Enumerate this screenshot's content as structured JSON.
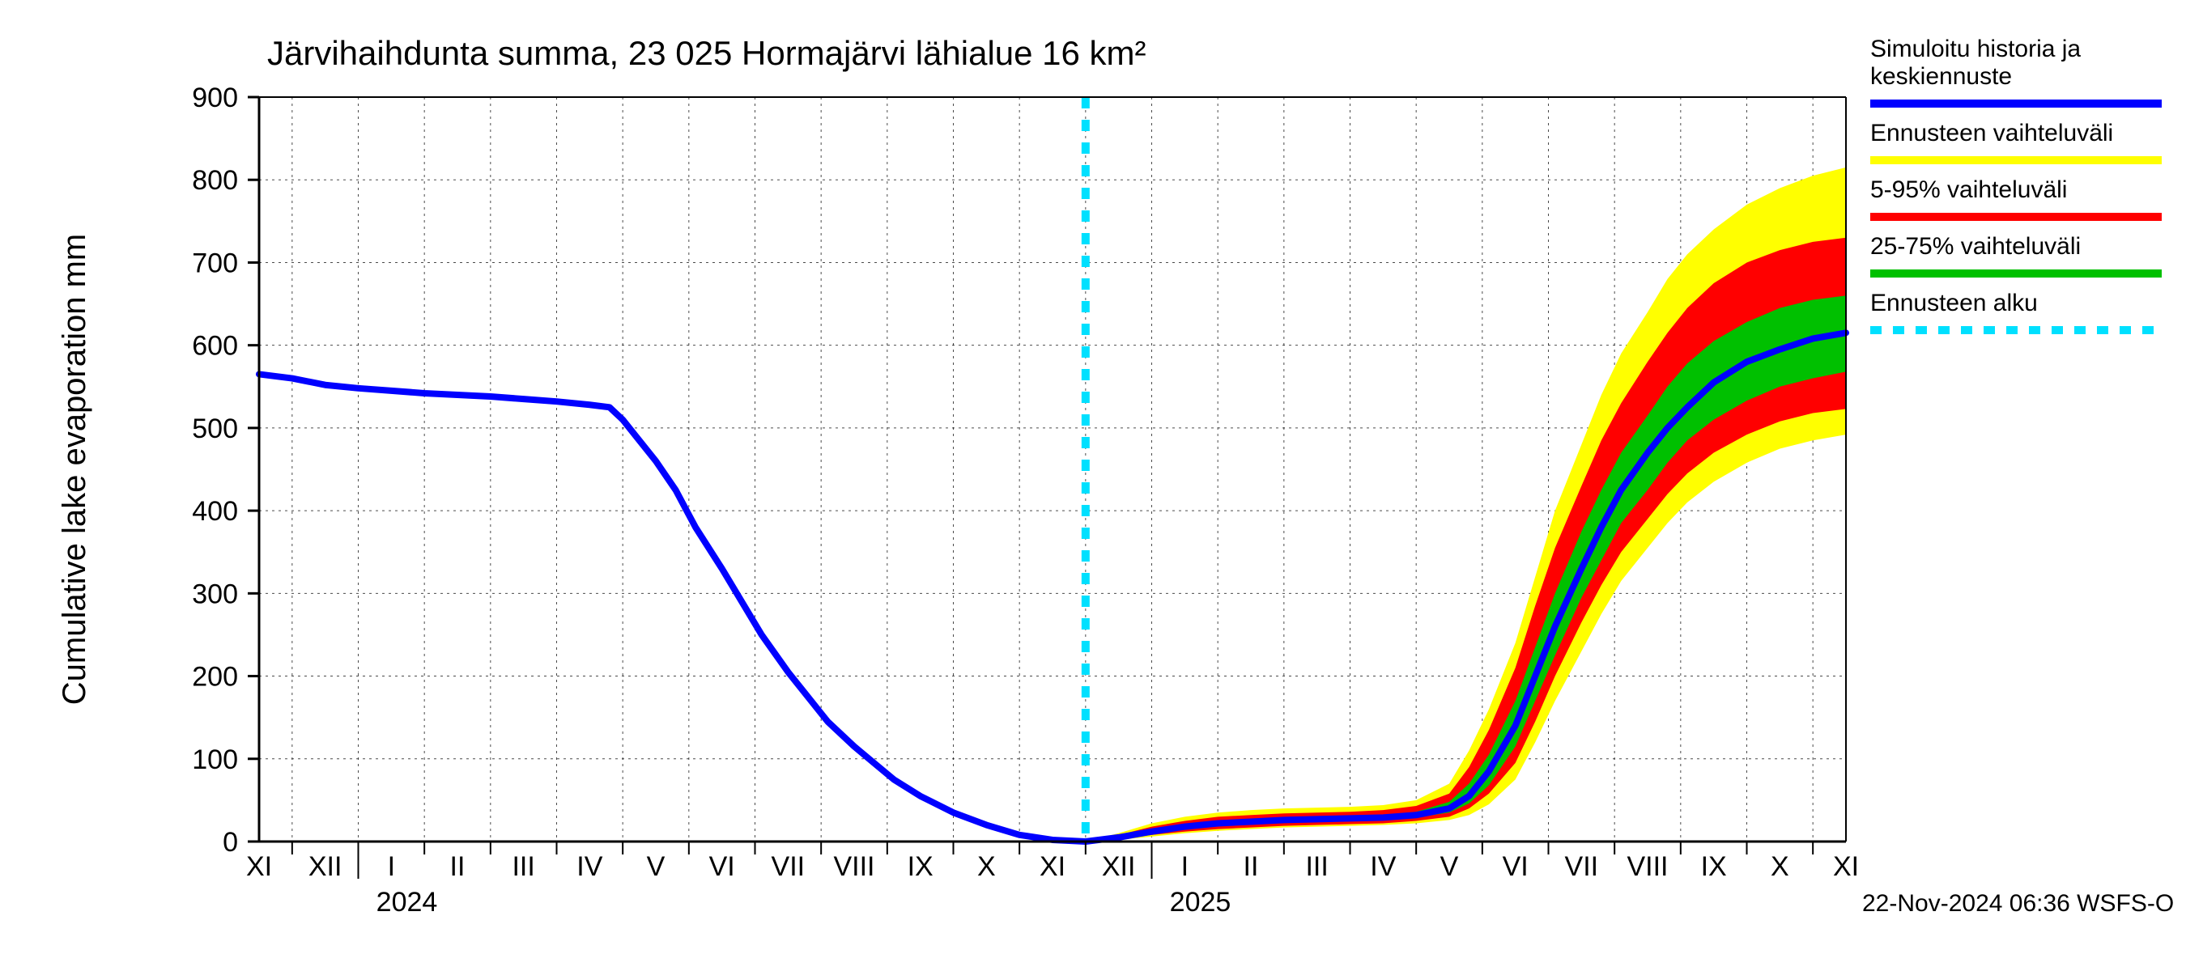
{
  "chart": {
    "type": "line",
    "title": "Järvihaihdunta summa, 23 025 Hormajärvi lähialue 16 km²",
    "ylabel": "Cumulative lake evaporation   mm",
    "footer": "22-Nov-2024 06:36 WSFS-O",
    "background_color": "#ffffff",
    "grid_color": "#000000",
    "grid_dash": "3,5",
    "axis_color": "#000000",
    "title_fontsize": 42,
    "label_fontsize": 40,
    "tick_fontsize": 34,
    "ylim": [
      0,
      900
    ],
    "ytick_step": 100,
    "yticks": [
      0,
      100,
      200,
      300,
      400,
      500,
      600,
      700,
      800,
      900
    ],
    "x_month_labels": [
      "XI",
      "XII",
      "I",
      "II",
      "III",
      "IV",
      "V",
      "VI",
      "VII",
      "VIII",
      "IX",
      "X",
      "XI",
      "XII",
      "I",
      "II",
      "III",
      "IV",
      "V",
      "VI",
      "VII",
      "VIII",
      "IX",
      "X",
      "XI"
    ],
    "x_year_labels": [
      {
        "label": "2024",
        "at_month_index": 2
      },
      {
        "label": "2025",
        "at_month_index": 14
      }
    ],
    "forecast_start_index": 12.5,
    "colors": {
      "history_line": "#0000ff",
      "full_range": "#ffff00",
      "range_5_95": "#ff0000",
      "range_25_75": "#00c000",
      "forecast_marker": "#00e0ff"
    },
    "line_width_main": 8,
    "line_width_legend": 10,
    "forecast_dash": "14,14",
    "series": {
      "main": [
        {
          "i": 0.0,
          "v": 565
        },
        {
          "i": 0.5,
          "v": 560
        },
        {
          "i": 1.0,
          "v": 552
        },
        {
          "i": 1.5,
          "v": 548
        },
        {
          "i": 2.0,
          "v": 545
        },
        {
          "i": 2.5,
          "v": 542
        },
        {
          "i": 3.0,
          "v": 540
        },
        {
          "i": 3.5,
          "v": 538
        },
        {
          "i": 4.0,
          "v": 535
        },
        {
          "i": 4.5,
          "v": 532
        },
        {
          "i": 5.0,
          "v": 528
        },
        {
          "i": 5.3,
          "v": 525
        },
        {
          "i": 5.5,
          "v": 510
        },
        {
          "i": 5.7,
          "v": 490
        },
        {
          "i": 6.0,
          "v": 460
        },
        {
          "i": 6.3,
          "v": 425
        },
        {
          "i": 6.6,
          "v": 380
        },
        {
          "i": 7.0,
          "v": 330
        },
        {
          "i": 7.3,
          "v": 290
        },
        {
          "i": 7.6,
          "v": 250
        },
        {
          "i": 8.0,
          "v": 205
        },
        {
          "i": 8.3,
          "v": 175
        },
        {
          "i": 8.6,
          "v": 145
        },
        {
          "i": 9.0,
          "v": 115
        },
        {
          "i": 9.3,
          "v": 95
        },
        {
          "i": 9.6,
          "v": 75
        },
        {
          "i": 10.0,
          "v": 55
        },
        {
          "i": 10.5,
          "v": 35
        },
        {
          "i": 11.0,
          "v": 20
        },
        {
          "i": 11.5,
          "v": 8
        },
        {
          "i": 12.0,
          "v": 2
        },
        {
          "i": 12.5,
          "v": 0
        },
        {
          "i": 13.0,
          "v": 5
        },
        {
          "i": 13.5,
          "v": 12
        },
        {
          "i": 14.0,
          "v": 18
        },
        {
          "i": 14.5,
          "v": 22
        },
        {
          "i": 15.0,
          "v": 24
        },
        {
          "i": 15.5,
          "v": 26
        },
        {
          "i": 16.0,
          "v": 27
        },
        {
          "i": 16.5,
          "v": 28
        },
        {
          "i": 17.0,
          "v": 29
        },
        {
          "i": 17.5,
          "v": 32
        },
        {
          "i": 18.0,
          "v": 40
        },
        {
          "i": 18.3,
          "v": 55
        },
        {
          "i": 18.6,
          "v": 85
        },
        {
          "i": 19.0,
          "v": 140
        },
        {
          "i": 19.3,
          "v": 200
        },
        {
          "i": 19.6,
          "v": 260
        },
        {
          "i": 20.0,
          "v": 330
        },
        {
          "i": 20.3,
          "v": 380
        },
        {
          "i": 20.6,
          "v": 425
        },
        {
          "i": 21.0,
          "v": 470
        },
        {
          "i": 21.3,
          "v": 500
        },
        {
          "i": 21.6,
          "v": 525
        },
        {
          "i": 22.0,
          "v": 555
        },
        {
          "i": 22.5,
          "v": 580
        },
        {
          "i": 23.0,
          "v": 595
        },
        {
          "i": 23.5,
          "v": 608
        },
        {
          "i": 24.0,
          "v": 615
        }
      ],
      "band_full_hi": [
        {
          "i": 12.5,
          "v": 0
        },
        {
          "i": 13.0,
          "v": 10
        },
        {
          "i": 13.5,
          "v": 22
        },
        {
          "i": 14.0,
          "v": 30
        },
        {
          "i": 14.5,
          "v": 35
        },
        {
          "i": 15.0,
          "v": 38
        },
        {
          "i": 15.5,
          "v": 40
        },
        {
          "i": 16.0,
          "v": 41
        },
        {
          "i": 16.5,
          "v": 42
        },
        {
          "i": 17.0,
          "v": 44
        },
        {
          "i": 17.5,
          "v": 50
        },
        {
          "i": 18.0,
          "v": 70
        },
        {
          "i": 18.3,
          "v": 110
        },
        {
          "i": 18.6,
          "v": 160
        },
        {
          "i": 19.0,
          "v": 240
        },
        {
          "i": 19.3,
          "v": 320
        },
        {
          "i": 19.6,
          "v": 400
        },
        {
          "i": 20.0,
          "v": 480
        },
        {
          "i": 20.3,
          "v": 540
        },
        {
          "i": 20.6,
          "v": 590
        },
        {
          "i": 21.0,
          "v": 640
        },
        {
          "i": 21.3,
          "v": 680
        },
        {
          "i": 21.6,
          "v": 710
        },
        {
          "i": 22.0,
          "v": 740
        },
        {
          "i": 22.5,
          "v": 770
        },
        {
          "i": 23.0,
          "v": 790
        },
        {
          "i": 23.5,
          "v": 805
        },
        {
          "i": 24.0,
          "v": 815
        }
      ],
      "band_full_lo": [
        {
          "i": 12.5,
          "v": 0
        },
        {
          "i": 13.0,
          "v": 2
        },
        {
          "i": 13.5,
          "v": 6
        },
        {
          "i": 14.0,
          "v": 10
        },
        {
          "i": 14.5,
          "v": 13
        },
        {
          "i": 15.0,
          "v": 15
        },
        {
          "i": 15.5,
          "v": 17
        },
        {
          "i": 16.0,
          "v": 18
        },
        {
          "i": 16.5,
          "v": 19
        },
        {
          "i": 17.0,
          "v": 20
        },
        {
          "i": 17.5,
          "v": 22
        },
        {
          "i": 18.0,
          "v": 26
        },
        {
          "i": 18.3,
          "v": 32
        },
        {
          "i": 18.6,
          "v": 45
        },
        {
          "i": 19.0,
          "v": 75
        },
        {
          "i": 19.3,
          "v": 120
        },
        {
          "i": 19.6,
          "v": 170
        },
        {
          "i": 20.0,
          "v": 230
        },
        {
          "i": 20.3,
          "v": 275
        },
        {
          "i": 20.6,
          "v": 315
        },
        {
          "i": 21.0,
          "v": 355
        },
        {
          "i": 21.3,
          "v": 385
        },
        {
          "i": 21.6,
          "v": 410
        },
        {
          "i": 22.0,
          "v": 435
        },
        {
          "i": 22.5,
          "v": 458
        },
        {
          "i": 23.0,
          "v": 475
        },
        {
          "i": 23.5,
          "v": 485
        },
        {
          "i": 24.0,
          "v": 492
        }
      ],
      "band_5_95_hi": [
        {
          "i": 12.5,
          "v": 0
        },
        {
          "i": 13.0,
          "v": 8
        },
        {
          "i": 13.5,
          "v": 18
        },
        {
          "i": 14.0,
          "v": 25
        },
        {
          "i": 14.5,
          "v": 30
        },
        {
          "i": 15.0,
          "v": 32
        },
        {
          "i": 15.5,
          "v": 34
        },
        {
          "i": 16.0,
          "v": 35
        },
        {
          "i": 16.5,
          "v": 36
        },
        {
          "i": 17.0,
          "v": 38
        },
        {
          "i": 17.5,
          "v": 43
        },
        {
          "i": 18.0,
          "v": 58
        },
        {
          "i": 18.3,
          "v": 90
        },
        {
          "i": 18.6,
          "v": 135
        },
        {
          "i": 19.0,
          "v": 210
        },
        {
          "i": 19.3,
          "v": 285
        },
        {
          "i": 19.6,
          "v": 355
        },
        {
          "i": 20.0,
          "v": 430
        },
        {
          "i": 20.3,
          "v": 485
        },
        {
          "i": 20.6,
          "v": 530
        },
        {
          "i": 21.0,
          "v": 580
        },
        {
          "i": 21.3,
          "v": 615
        },
        {
          "i": 21.6,
          "v": 645
        },
        {
          "i": 22.0,
          "v": 675
        },
        {
          "i": 22.5,
          "v": 700
        },
        {
          "i": 23.0,
          "v": 715
        },
        {
          "i": 23.5,
          "v": 725
        },
        {
          "i": 24.0,
          "v": 730
        }
      ],
      "band_5_95_lo": [
        {
          "i": 12.5,
          "v": 0
        },
        {
          "i": 13.0,
          "v": 3
        },
        {
          "i": 13.5,
          "v": 8
        },
        {
          "i": 14.0,
          "v": 12
        },
        {
          "i": 14.5,
          "v": 15
        },
        {
          "i": 15.0,
          "v": 17
        },
        {
          "i": 15.5,
          "v": 19
        },
        {
          "i": 16.0,
          "v": 20
        },
        {
          "i": 16.5,
          "v": 21
        },
        {
          "i": 17.0,
          "v": 22
        },
        {
          "i": 17.5,
          "v": 25
        },
        {
          "i": 18.0,
          "v": 30
        },
        {
          "i": 18.3,
          "v": 40
        },
        {
          "i": 18.6,
          "v": 58
        },
        {
          "i": 19.0,
          "v": 95
        },
        {
          "i": 19.3,
          "v": 145
        },
        {
          "i": 19.6,
          "v": 200
        },
        {
          "i": 20.0,
          "v": 265
        },
        {
          "i": 20.3,
          "v": 310
        },
        {
          "i": 20.6,
          "v": 350
        },
        {
          "i": 21.0,
          "v": 390
        },
        {
          "i": 21.3,
          "v": 420
        },
        {
          "i": 21.6,
          "v": 445
        },
        {
          "i": 22.0,
          "v": 470
        },
        {
          "i": 22.5,
          "v": 492
        },
        {
          "i": 23.0,
          "v": 508
        },
        {
          "i": 23.5,
          "v": 518
        },
        {
          "i": 24.0,
          "v": 523
        }
      ],
      "band_25_75_hi": [
        {
          "i": 12.5,
          "v": 0
        },
        {
          "i": 13.0,
          "v": 6
        },
        {
          "i": 13.5,
          "v": 15
        },
        {
          "i": 14.0,
          "v": 21
        },
        {
          "i": 14.5,
          "v": 25
        },
        {
          "i": 15.0,
          "v": 27
        },
        {
          "i": 15.5,
          "v": 29
        },
        {
          "i": 16.0,
          "v": 30
        },
        {
          "i": 16.5,
          "v": 31
        },
        {
          "i": 17.0,
          "v": 32
        },
        {
          "i": 17.5,
          "v": 36
        },
        {
          "i": 18.0,
          "v": 48
        },
        {
          "i": 18.3,
          "v": 70
        },
        {
          "i": 18.6,
          "v": 105
        },
        {
          "i": 19.0,
          "v": 170
        },
        {
          "i": 19.3,
          "v": 235
        },
        {
          "i": 19.6,
          "v": 300
        },
        {
          "i": 20.0,
          "v": 375
        },
        {
          "i": 20.3,
          "v": 425
        },
        {
          "i": 20.6,
          "v": 470
        },
        {
          "i": 21.0,
          "v": 515
        },
        {
          "i": 21.3,
          "v": 550
        },
        {
          "i": 21.6,
          "v": 578
        },
        {
          "i": 22.0,
          "v": 605
        },
        {
          "i": 22.5,
          "v": 628
        },
        {
          "i": 23.0,
          "v": 645
        },
        {
          "i": 23.5,
          "v": 655
        },
        {
          "i": 24.0,
          "v": 660
        }
      ],
      "band_25_75_lo": [
        {
          "i": 12.5,
          "v": 0
        },
        {
          "i": 13.0,
          "v": 4
        },
        {
          "i": 13.5,
          "v": 10
        },
        {
          "i": 14.0,
          "v": 15
        },
        {
          "i": 14.5,
          "v": 19
        },
        {
          "i": 15.0,
          "v": 21
        },
        {
          "i": 15.5,
          "v": 23
        },
        {
          "i": 16.0,
          "v": 24
        },
        {
          "i": 16.5,
          "v": 25
        },
        {
          "i": 17.0,
          "v": 26
        },
        {
          "i": 17.5,
          "v": 29
        },
        {
          "i": 18.0,
          "v": 35
        },
        {
          "i": 18.3,
          "v": 46
        },
        {
          "i": 18.6,
          "v": 68
        },
        {
          "i": 19.0,
          "v": 115
        },
        {
          "i": 19.3,
          "v": 170
        },
        {
          "i": 19.6,
          "v": 225
        },
        {
          "i": 20.0,
          "v": 295
        },
        {
          "i": 20.3,
          "v": 340
        },
        {
          "i": 20.6,
          "v": 385
        },
        {
          "i": 21.0,
          "v": 425
        },
        {
          "i": 21.3,
          "v": 458
        },
        {
          "i": 21.6,
          "v": 485
        },
        {
          "i": 22.0,
          "v": 510
        },
        {
          "i": 22.5,
          "v": 533
        },
        {
          "i": 23.0,
          "v": 550
        },
        {
          "i": 23.5,
          "v": 560
        },
        {
          "i": 24.0,
          "v": 568
        }
      ]
    },
    "legend": {
      "items": [
        {
          "label": "Simuloitu historia ja keskiennuste",
          "color": "#0000ff",
          "type": "line"
        },
        {
          "label": "Ennusteen vaihteluväli",
          "color": "#ffff00",
          "type": "line"
        },
        {
          "label": "5-95% vaihteluväli",
          "color": "#ff0000",
          "type": "line"
        },
        {
          "label": "25-75% vaihteluväli",
          "color": "#00c000",
          "type": "line"
        },
        {
          "label": "Ennusteen alku",
          "color": "#00e0ff",
          "type": "dash"
        }
      ]
    }
  }
}
